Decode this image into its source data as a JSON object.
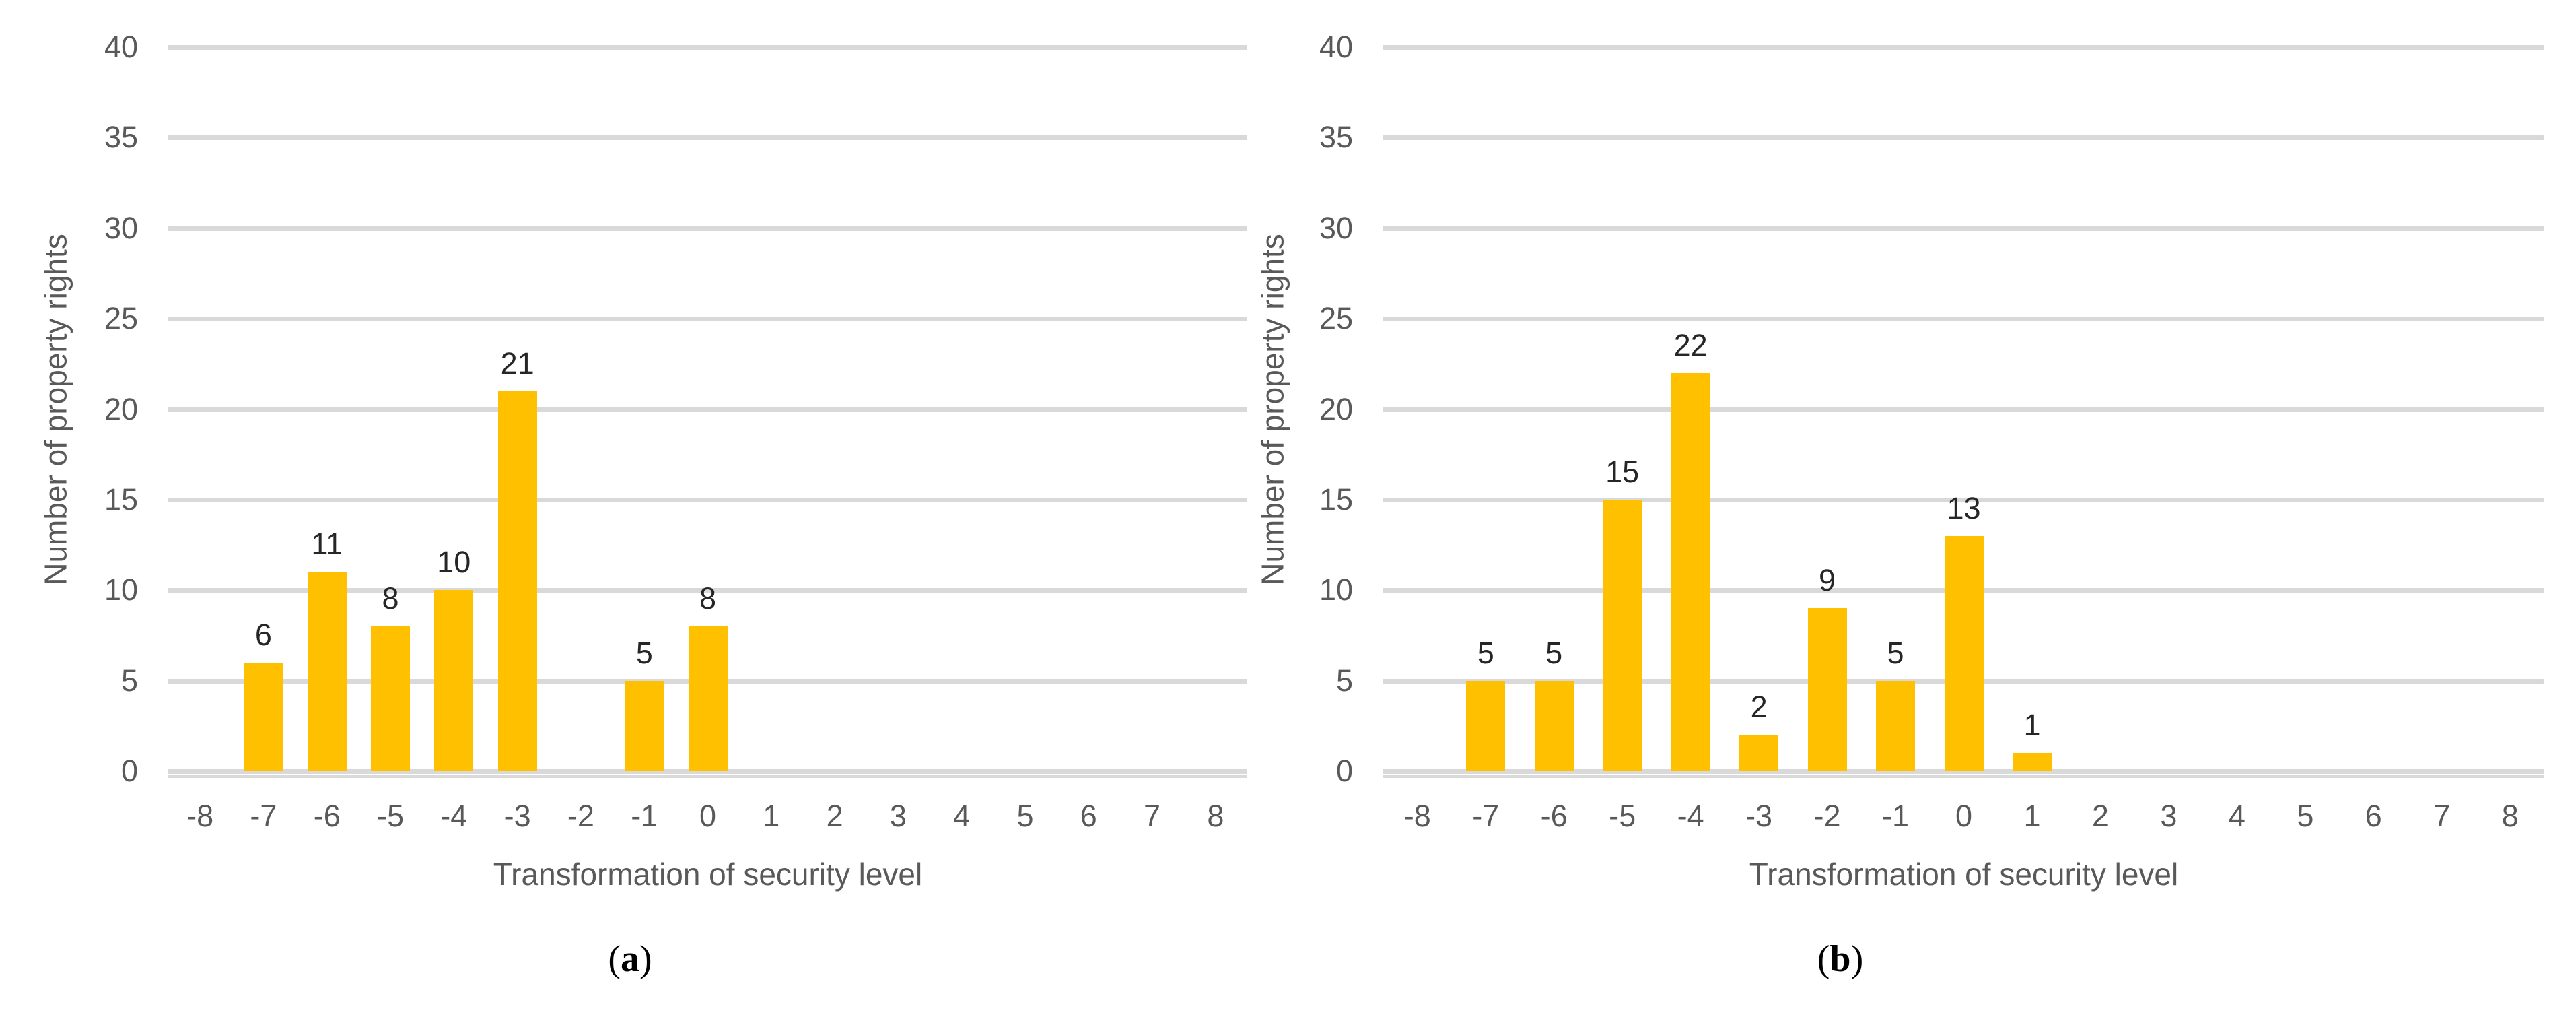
{
  "chart_data": [
    {
      "type": "bar",
      "panel": "a",
      "title": "",
      "xlabel": "Transformation of security level",
      "ylabel": "Number of property rights",
      "categories": [
        -8,
        -7,
        -6,
        -5,
        -4,
        -3,
        -2,
        -1,
        0,
        1,
        2,
        3,
        4,
        5,
        6,
        7,
        8
      ],
      "values": [
        null,
        6,
        11,
        8,
        10,
        21,
        null,
        5,
        8,
        null,
        null,
        null,
        null,
        null,
        null,
        null,
        null
      ],
      "data_labels": [
        "",
        "6",
        "11",
        "8",
        "10",
        "21",
        "",
        "5",
        "8",
        "",
        "",
        "",
        "",
        "",
        "",
        "",
        ""
      ],
      "ylim": [
        0,
        40
      ],
      "ytick_step": 5,
      "yticks": [
        0,
        5,
        10,
        15,
        20,
        25,
        30,
        35,
        40
      ],
      "grid": "horizontal",
      "legend": "none",
      "bar_color": "#FFC000"
    },
    {
      "type": "bar",
      "panel": "b",
      "title": "",
      "xlabel": "Transformation of security level",
      "ylabel": "Number of property rights",
      "categories": [
        -8,
        -7,
        -6,
        -5,
        -4,
        -3,
        -2,
        -1,
        0,
        1,
        2,
        3,
        4,
        5,
        6,
        7,
        8
      ],
      "values": [
        null,
        5,
        5,
        15,
        22,
        2,
        9,
        5,
        13,
        1,
        null,
        null,
        null,
        null,
        null,
        null,
        null
      ],
      "data_labels": [
        "",
        "5",
        "5",
        "15",
        "22",
        "2",
        "9",
        "5",
        "13",
        "1",
        "",
        "",
        "",
        "",
        "",
        "",
        ""
      ],
      "ylim": [
        0,
        40
      ],
      "ytick_step": 5,
      "yticks": [
        0,
        5,
        10,
        15,
        20,
        25,
        30,
        35,
        40
      ],
      "grid": "horizontal",
      "legend": "none",
      "bar_color": "#FFC000"
    }
  ],
  "figure": {
    "panels": [
      {
        "caption_letter": "a"
      },
      {
        "caption_letter": "b"
      }
    ],
    "colors": {
      "bar": "#FFC000",
      "gridline": "#D9D9D9",
      "axis_text": "#595959",
      "data_label": "#262626",
      "caption_text": "#000000"
    }
  }
}
